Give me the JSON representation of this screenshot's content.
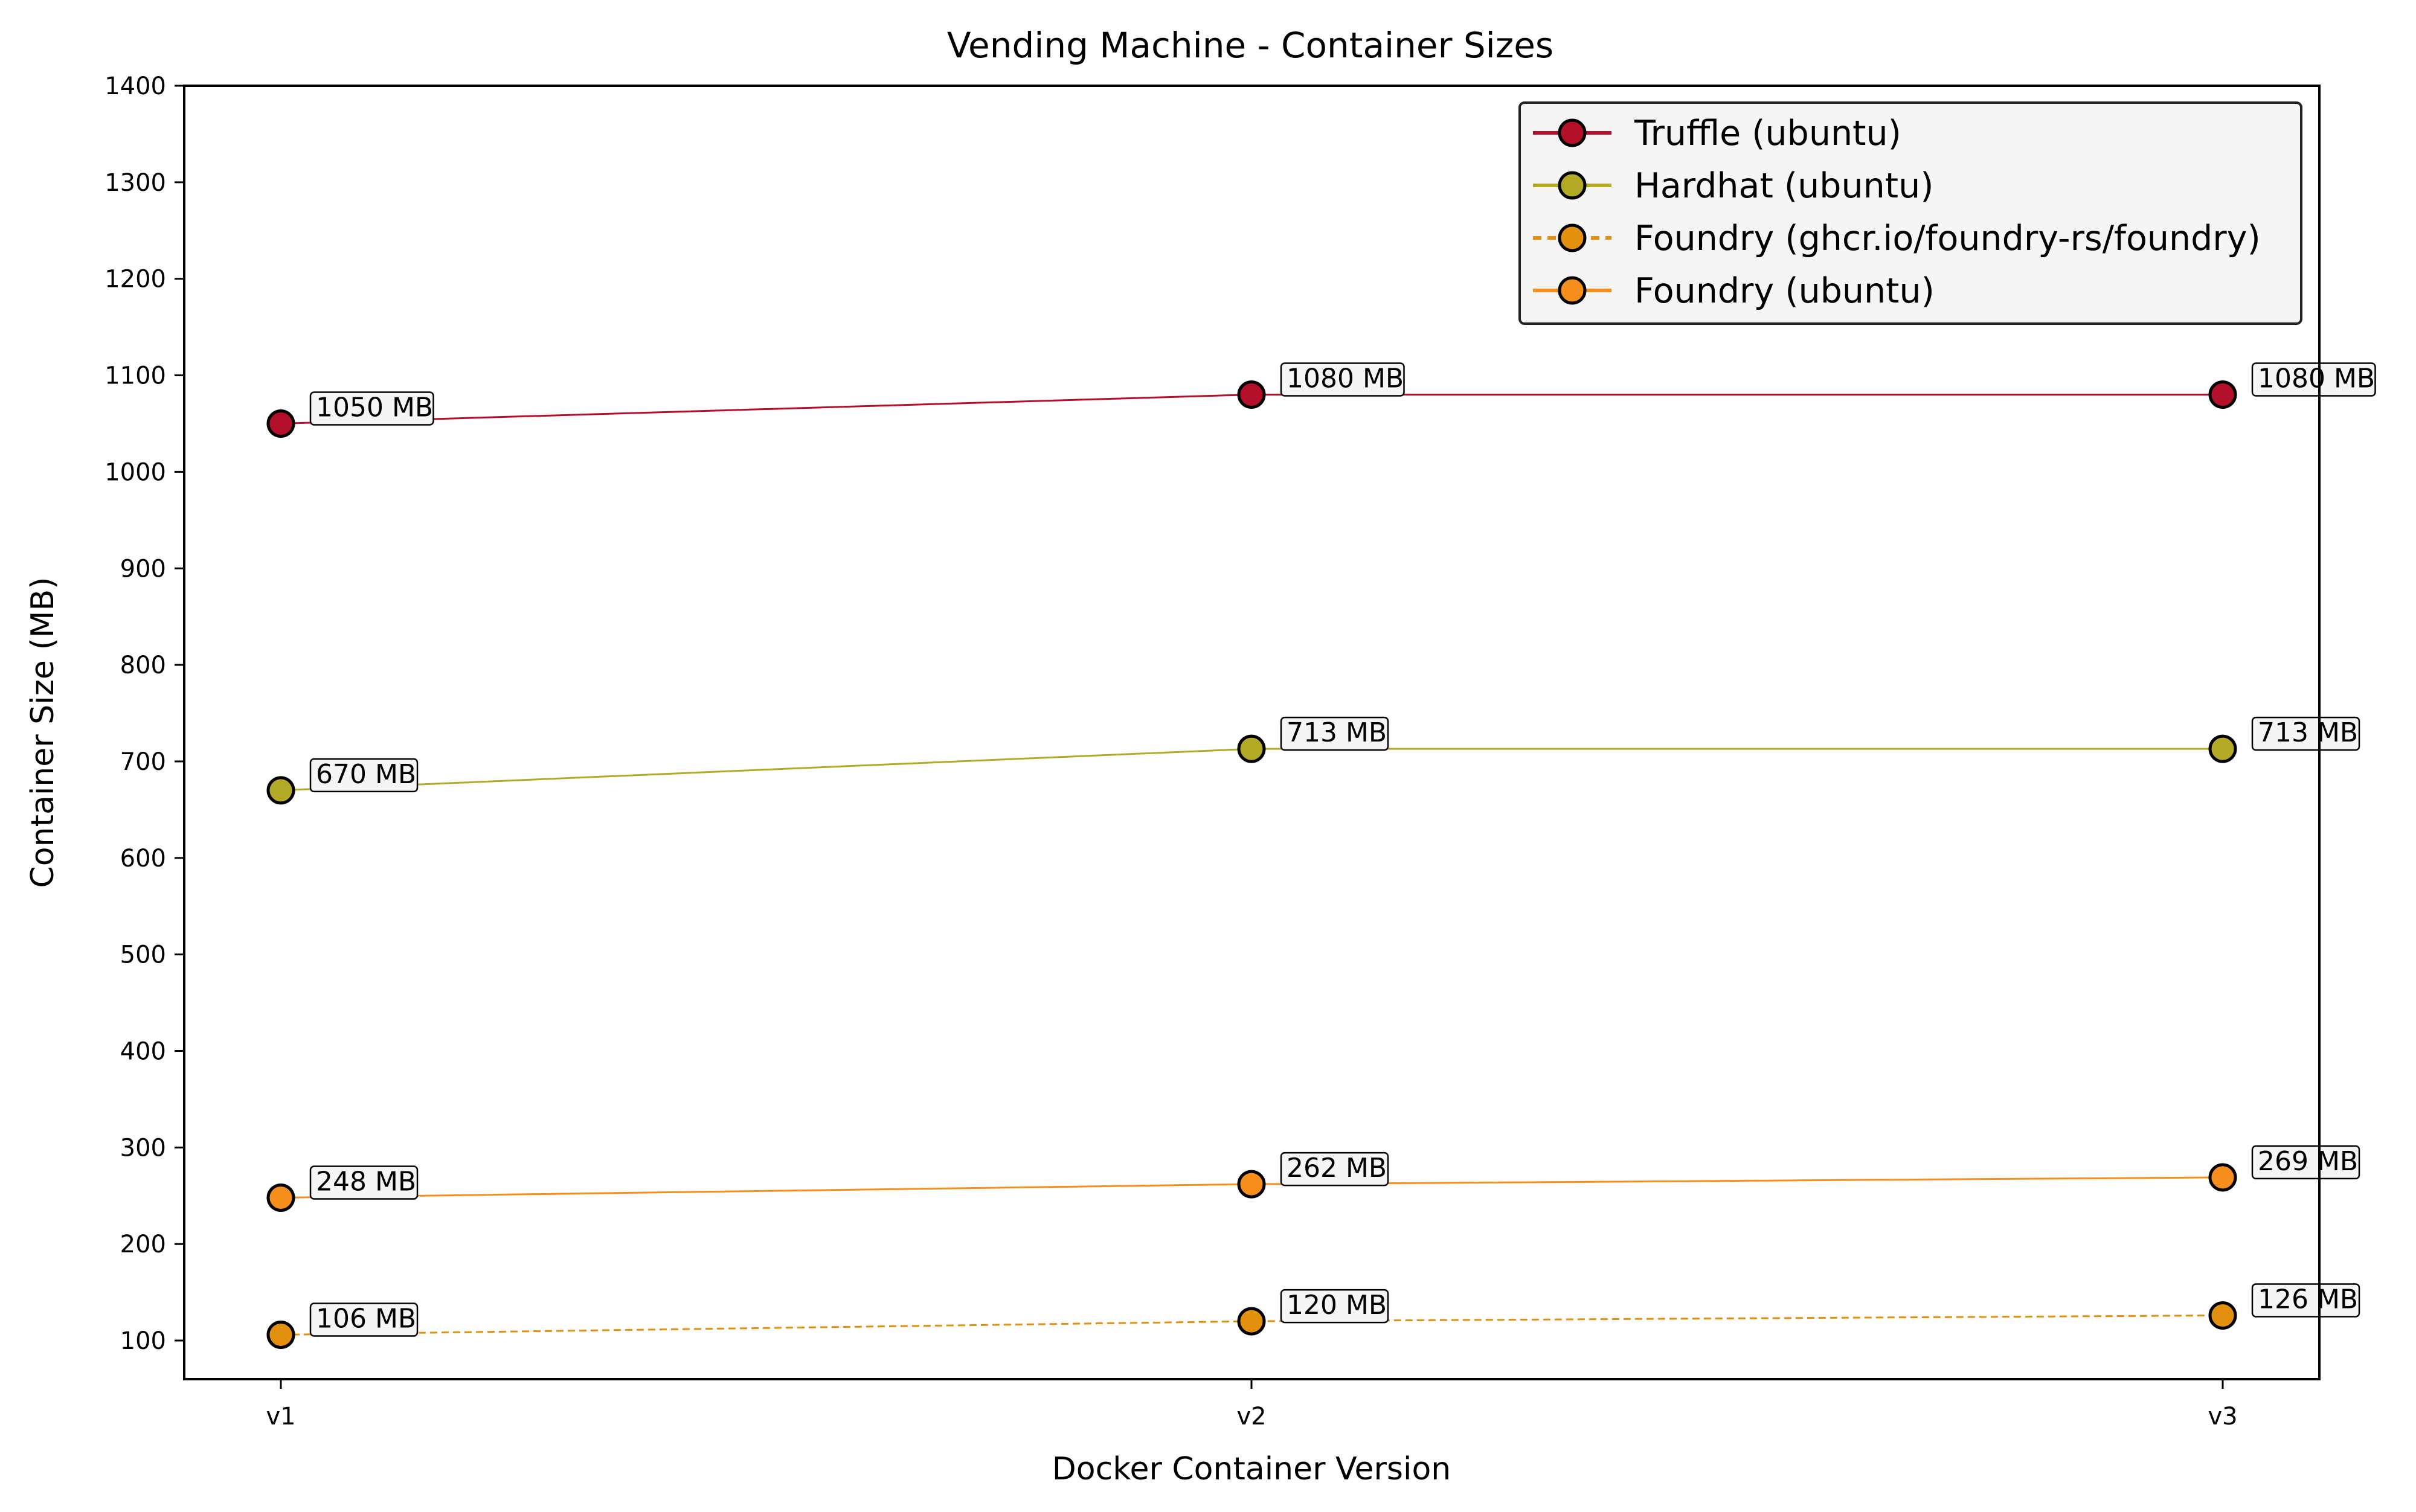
{
  "chart_data": {
    "type": "line",
    "title": "Vending Machine - Container Sizes",
    "xlabel": "Docker Container Version",
    "ylabel": "Container Size (MB)",
    "categories": [
      "v1",
      "v2",
      "v3"
    ],
    "ylim": [
      60,
      1400
    ],
    "yticks": [
      100,
      200,
      300,
      400,
      500,
      600,
      700,
      800,
      900,
      1000,
      1100,
      1200,
      1300,
      1400
    ],
    "grid": false,
    "legend_position": "top-right",
    "label_unit": "MB",
    "series": [
      {
        "name": "Truffle (ubuntu)",
        "values": [
          1050,
          1080,
          1080
        ],
        "color": "#b5102a",
        "line_style": "solid"
      },
      {
        "name": "Hardhat (ubuntu)",
        "values": [
          670,
          713,
          713
        ],
        "color": "#b3aa28",
        "line_style": "solid"
      },
      {
        "name": "Foundry (ghcr.io/foundry-rs/foundry)",
        "values": [
          106,
          120,
          126
        ],
        "color": "#e3900f",
        "line_style": "dashed"
      },
      {
        "name": "Foundry (ubuntu)",
        "values": [
          248,
          262,
          269
        ],
        "color": "#f58e1b",
        "line_style": "solid"
      }
    ]
  }
}
